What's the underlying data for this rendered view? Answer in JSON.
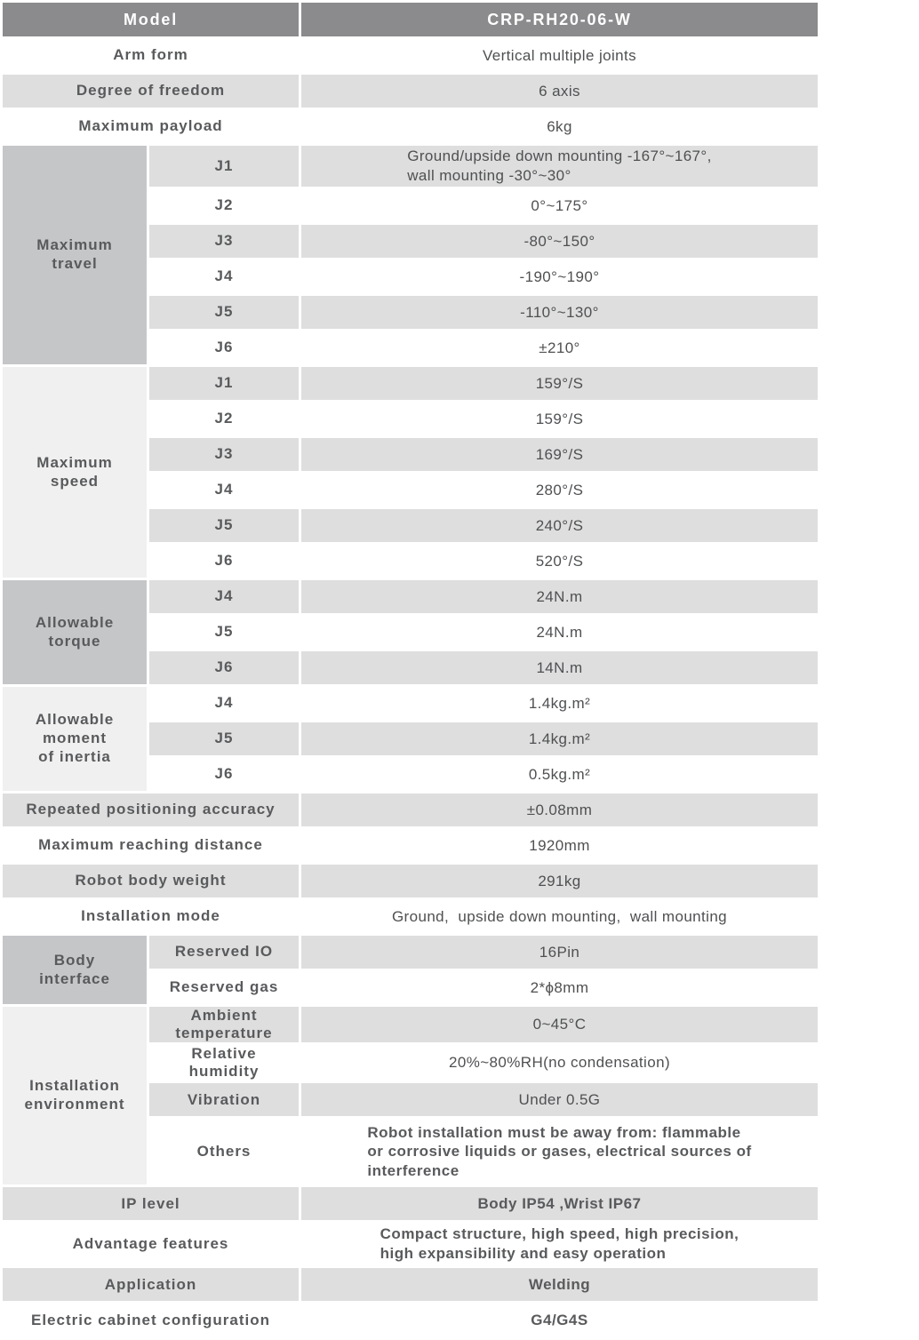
{
  "colors": {
    "header_bg": "#8b8b8d",
    "header_text": "#ffffff",
    "row_stripe": "#dedede",
    "group_dark": "#c5c6c8",
    "group_light": "#f0f0f0",
    "label_text": "#595a5c",
    "value_text": "#4f5052"
  },
  "header": {
    "label": "Model",
    "value": "CRP-RH20-06-W"
  },
  "sections": [
    {
      "kind": "row",
      "label": "Arm form",
      "value": "Vertical multiple joints"
    },
    {
      "kind": "row",
      "label": "Degree of freedom",
      "value": "6 axis"
    },
    {
      "kind": "row",
      "label": "Maximum payload",
      "value": "6kg"
    },
    {
      "kind": "group",
      "label": "Maximum\ntravel",
      "shade": "dark",
      "rows": [
        {
          "label": "J1",
          "value": "Ground/upside down mounting -167°~167°,\nwall mounting -30°~30°"
        },
        {
          "label": "J2",
          "value": "0°~175°"
        },
        {
          "label": "J3",
          "value": "-80°~150°"
        },
        {
          "label": "J4",
          "value": "-190°~190°"
        },
        {
          "label": "J5",
          "value": "-110°~130°"
        },
        {
          "label": "J6",
          "value": "±210°"
        }
      ]
    },
    {
      "kind": "group",
      "label": "Maximum\nspeed",
      "shade": "light",
      "rows": [
        {
          "label": "J1",
          "value": "159°/S"
        },
        {
          "label": "J2",
          "value": "159°/S"
        },
        {
          "label": "J3",
          "value": "169°/S"
        },
        {
          "label": "J4",
          "value": "280°/S"
        },
        {
          "label": "J5",
          "value": "240°/S"
        },
        {
          "label": "J6",
          "value": "520°/S"
        }
      ]
    },
    {
      "kind": "group",
      "label": "Allowable\ntorque",
      "shade": "dark",
      "rows": [
        {
          "label": "J4",
          "value": "24N.m"
        },
        {
          "label": "J5",
          "value": "24N.m"
        },
        {
          "label": "J6",
          "value": "14N.m"
        }
      ]
    },
    {
      "kind": "group",
      "label": "Allowable\nmoment\nof inertia",
      "shade": "light",
      "rows": [
        {
          "label": "J4",
          "value": "1.4kg.m²"
        },
        {
          "label": "J5",
          "value": "1.4kg.m²"
        },
        {
          "label": "J6",
          "value": "0.5kg.m²"
        }
      ]
    },
    {
      "kind": "row",
      "label": "Repeated positioning accuracy",
      "value": "±0.08mm"
    },
    {
      "kind": "row",
      "label": "Maximum reaching distance",
      "value": "1920mm"
    },
    {
      "kind": "row",
      "label": "Robot body weight",
      "value": "291kg"
    },
    {
      "kind": "row",
      "label": "Installation mode",
      "value": "Ground,  upside down mounting,  wall mounting"
    },
    {
      "kind": "group",
      "label": "Body\ninterface",
      "shade": "dark",
      "rows": [
        {
          "label": "Reserved IO",
          "value": "16Pin"
        },
        {
          "label": "Reserved gas",
          "value": "2*ϕ8mm"
        }
      ]
    },
    {
      "kind": "group",
      "label": "Installation\nenvironment",
      "shade": "light",
      "rows": [
        {
          "label": "Ambient\ntemperature",
          "value": "0~45°C"
        },
        {
          "label": "Relative\nhumidity",
          "value": "20%~80%RH(no condensation)"
        },
        {
          "label": "Vibration",
          "value": "Under 0.5G"
        },
        {
          "label": "Others",
          "value": "Robot installation must be away from: flammable\nor corrosive liquids or gases, electrical sources of\ninterference",
          "bold": true
        }
      ]
    },
    {
      "kind": "row",
      "label": "IP level",
      "value": "Body IP54 ,Wrist IP67",
      "bold": true
    },
    {
      "kind": "row",
      "label": "Advantage features",
      "value": "Compact structure, high speed, high precision,\nhigh expansibility and easy operation",
      "bold": true
    },
    {
      "kind": "row",
      "label": "Application",
      "value": "Welding",
      "bold": true
    },
    {
      "kind": "row",
      "label": "Electric cabinet configuration",
      "value": "G4/G4S",
      "bold": true
    }
  ]
}
